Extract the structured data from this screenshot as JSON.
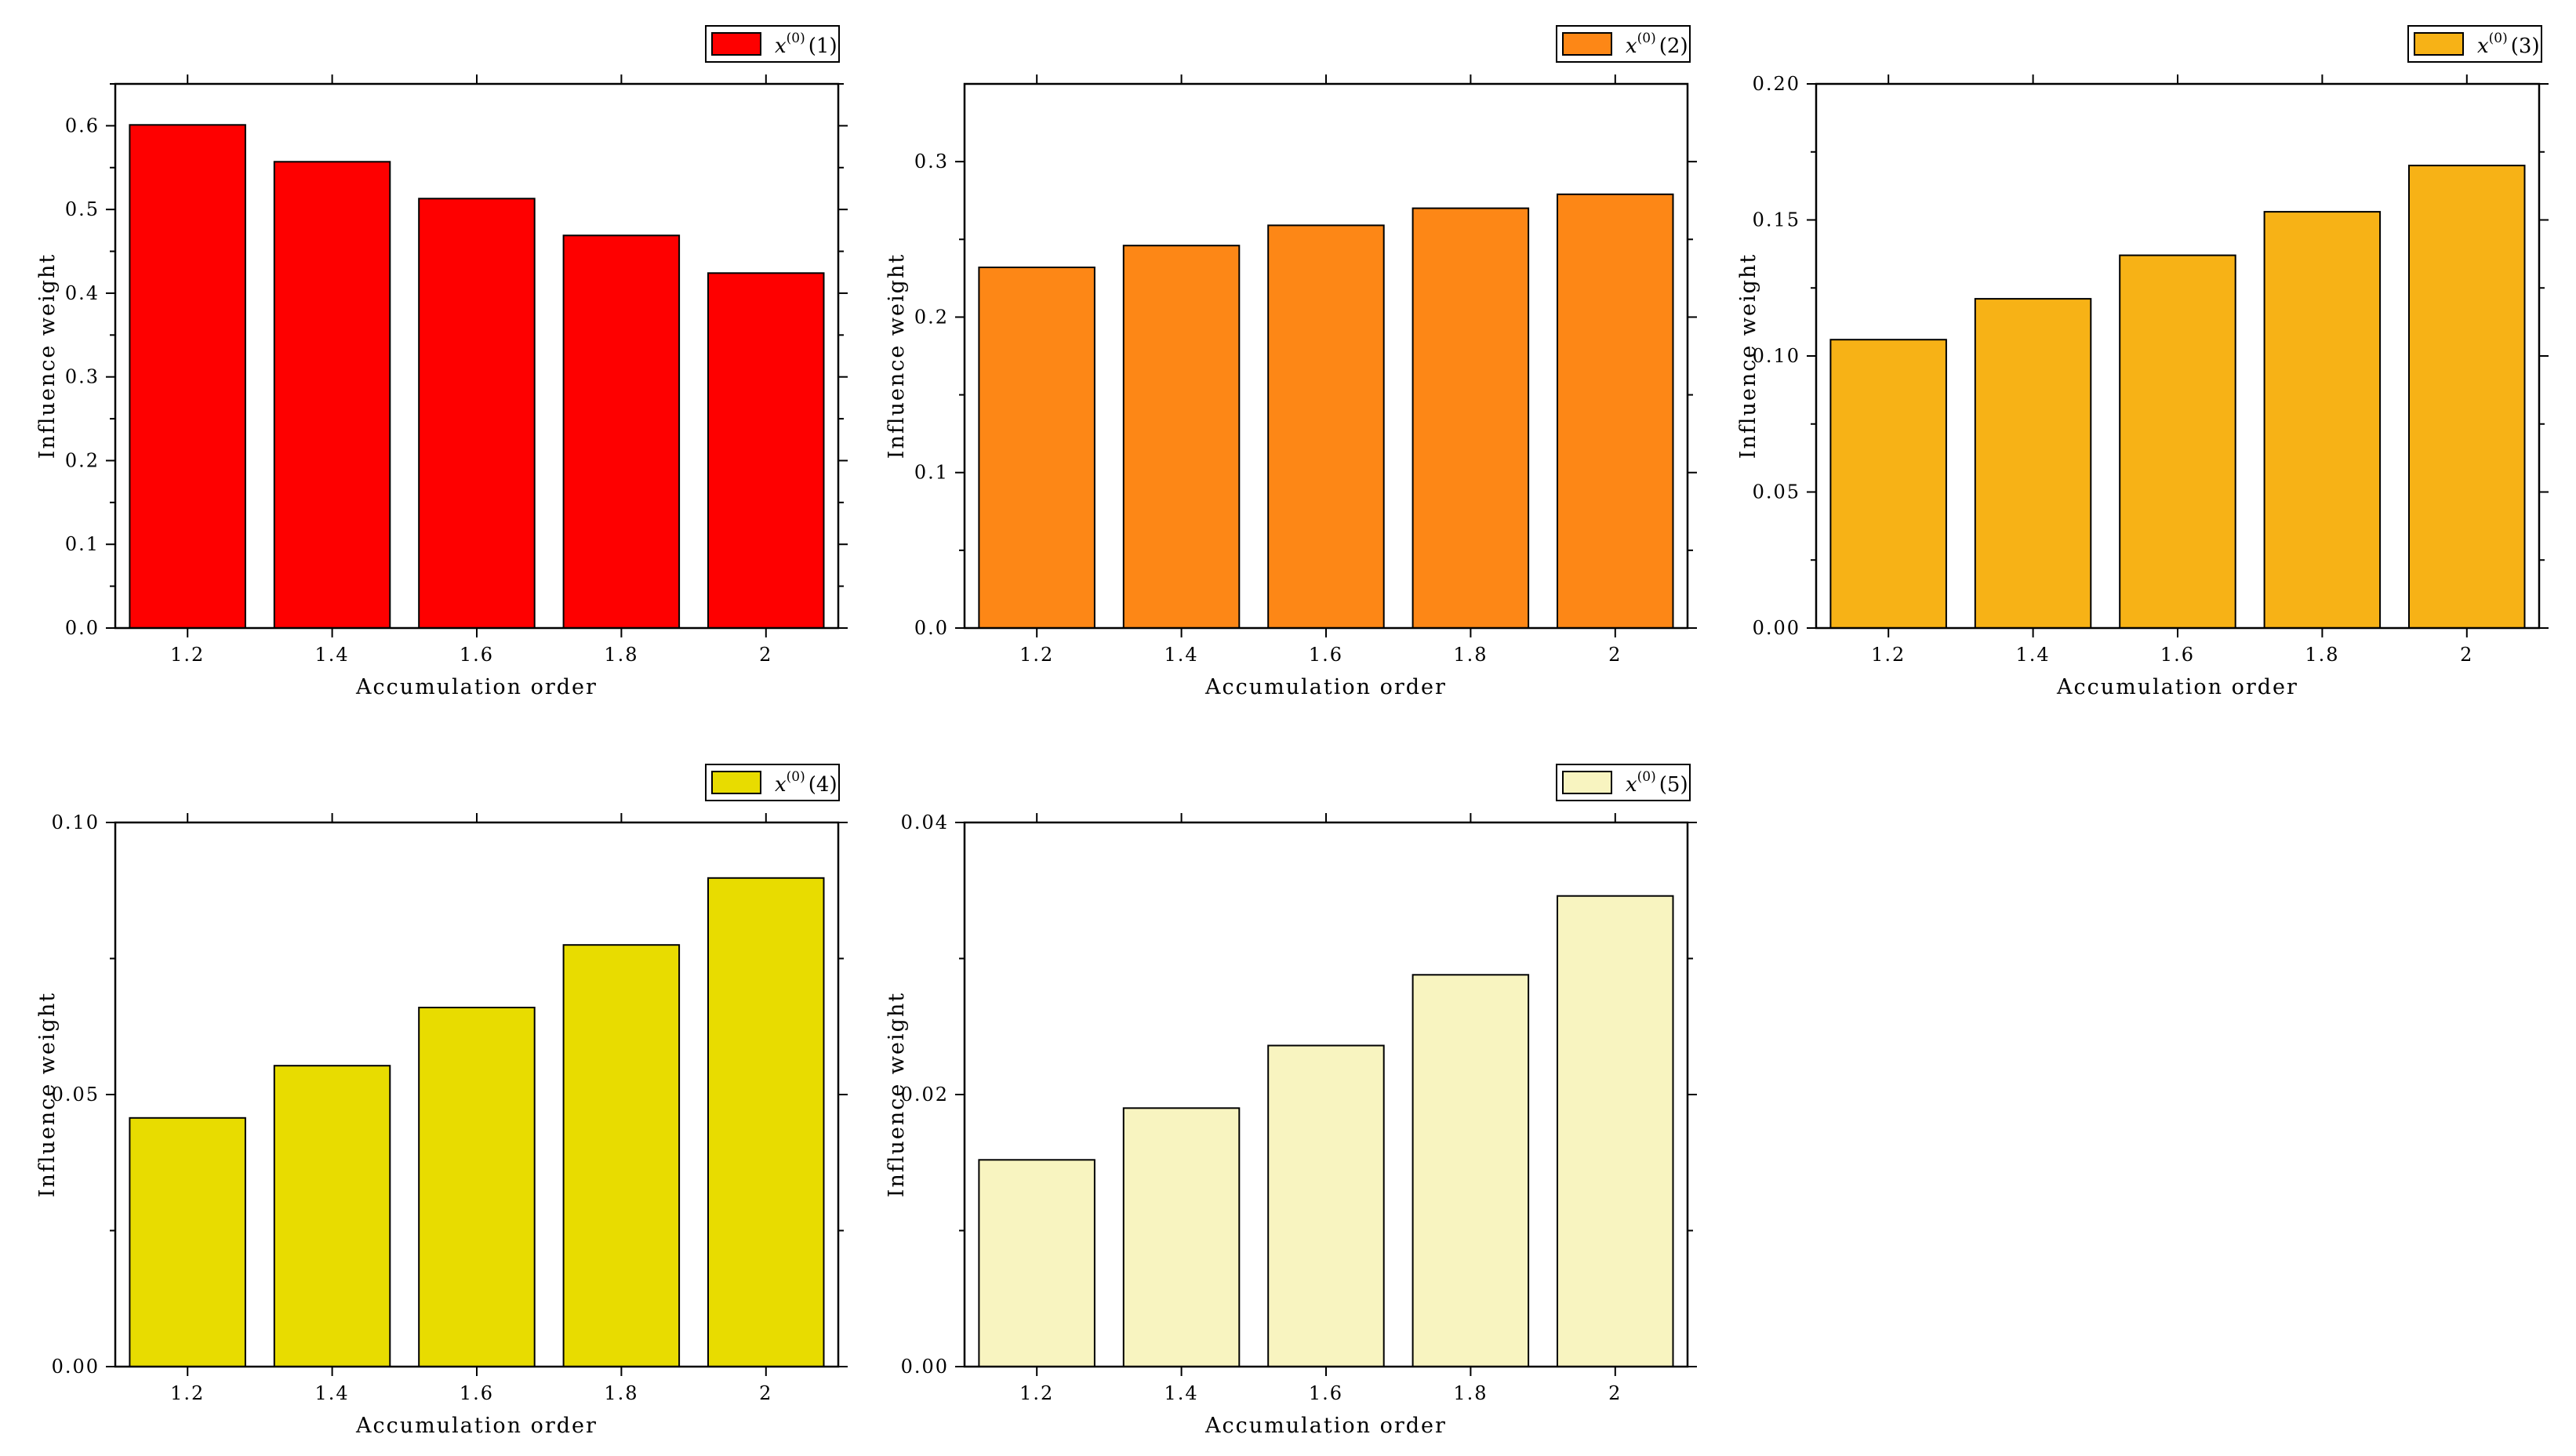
{
  "chart_data": [
    {
      "type": "bar",
      "legend": {
        "var": "x",
        "sup": "(0)",
        "idx": "(1)",
        "position": "top-right"
      },
      "color": "#fe0000",
      "categories": [
        "1.2",
        "1.4",
        "1.6",
        "1.8",
        "2"
      ],
      "values": [
        0.601,
        0.557,
        0.513,
        0.469,
        0.424
      ],
      "xlabel": "Accumulation order",
      "ylabel": "Influence weight",
      "ylim": [
        0,
        0.65
      ],
      "yticks": [
        0.0,
        0.1,
        0.2,
        0.3,
        0.4,
        0.5,
        0.6
      ],
      "ytick_labels": [
        "0.0",
        "0.1",
        "0.2",
        "0.3",
        "0.4",
        "0.5",
        "0.6"
      ]
    },
    {
      "type": "bar",
      "legend": {
        "var": "x",
        "sup": "(0)",
        "idx": "(2)",
        "position": "top-right"
      },
      "color": "#fd8716",
      "categories": [
        "1.2",
        "1.4",
        "1.6",
        "1.8",
        "2"
      ],
      "values": [
        0.232,
        0.246,
        0.259,
        0.27,
        0.279
      ],
      "xlabel": "Accumulation order",
      "ylabel": "Influence weight",
      "ylim": [
        0,
        0.35
      ],
      "yticks": [
        0.0,
        0.1,
        0.2,
        0.3
      ],
      "ytick_labels": [
        "0.0",
        "0.1",
        "0.2",
        "0.3"
      ]
    },
    {
      "type": "bar",
      "legend": {
        "var": "x",
        "sup": "(0)",
        "idx": "(3)",
        "position": "top-right"
      },
      "color": "#f7b216",
      "categories": [
        "1.2",
        "1.4",
        "1.6",
        "1.8",
        "2"
      ],
      "values": [
        0.106,
        0.121,
        0.137,
        0.153,
        0.17
      ],
      "xlabel": "Accumulation order",
      "ylabel": "Influence weight",
      "ylim": [
        0,
        0.2
      ],
      "yticks": [
        0.0,
        0.05,
        0.1,
        0.15,
        0.2
      ],
      "ytick_labels": [
        "0.00",
        "0.05",
        "0.10",
        "0.15",
        "0.20"
      ]
    },
    {
      "type": "bar",
      "legend": {
        "var": "x",
        "sup": "(0)",
        "idx": "(4)",
        "position": "top-right"
      },
      "color": "#e8dc00",
      "categories": [
        "1.2",
        "1.4",
        "1.6",
        "1.8",
        "2"
      ],
      "values": [
        0.0457,
        0.0553,
        0.066,
        0.0775,
        0.0898
      ],
      "xlabel": "Accumulation order",
      "ylabel": "Influence weight",
      "ylim": [
        0,
        0.1
      ],
      "yticks": [
        0.0,
        0.05,
        0.1
      ],
      "ytick_labels": [
        "0.00",
        "0.05",
        "0.10"
      ]
    },
    {
      "type": "bar",
      "legend": {
        "var": "x",
        "sup": "(0)",
        "idx": "(5)",
        "position": "top-right"
      },
      "color": "#f8f4c0",
      "categories": [
        "1.2",
        "1.4",
        "1.6",
        "1.8",
        "2"
      ],
      "values": [
        0.0152,
        0.019,
        0.0236,
        0.0288,
        0.0346
      ],
      "xlabel": "Accumulation order",
      "ylabel": "Influence weight",
      "ylim": [
        0,
        0.04
      ],
      "yticks": [
        0.0,
        0.02,
        0.04
      ],
      "ytick_labels": [
        "0.00",
        "0.02",
        "0.04"
      ]
    }
  ]
}
